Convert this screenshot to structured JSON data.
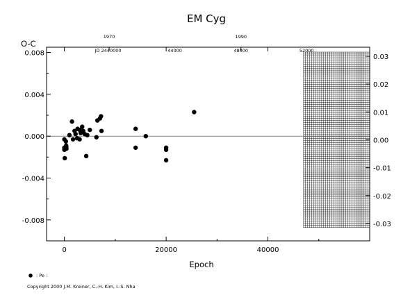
{
  "chart_data": {
    "type": "scatter",
    "title": "EM  Cyg",
    "xlabel": "Epoch",
    "ylabel": "O-C",
    "xlim": [
      -3500,
      60000
    ],
    "ylim": [
      -0.01,
      0.0085
    ],
    "xticks": [
      "0",
      "20000",
      "40000"
    ],
    "xtick_values": [
      0,
      20000,
      40000
    ],
    "yticks": [
      "0.008",
      "0.004",
      "0.000",
      "-0.004",
      "-0.008"
    ],
    "ytick_values": [
      0.008,
      0.004,
      0.0,
      -0.004,
      -0.008
    ],
    "ytick_display_first": "0.008",
    "right_ylim": [
      -0.0315,
      0.0315
    ],
    "right_yticks": [
      "0.03",
      "0.02",
      "0.01",
      "0.00",
      "-0.01",
      "-0.02",
      "-0.03"
    ],
    "right_ytick_values": [
      0.03,
      0.02,
      0.01,
      0.0,
      -0.01,
      -0.02,
      -0.03
    ],
    "top_year_ticks": [
      "1970",
      "1990"
    ],
    "top_year_epochs": [
      8800,
      34700
    ],
    "top_jd_ticks": [
      "JD 2440000",
      "44000",
      "48000",
      "52000"
    ],
    "top_jd_epochs": [
      8600,
      21700,
      34700,
      47600
    ],
    "grid_region_xlim": [
      47000,
      60000
    ],
    "legend": {
      "marker": "filled-circle",
      "label": ": Pe :"
    },
    "series": [
      {
        "marker": "filled-circle",
        "points": [
          [
            0,
            -0.0003
          ],
          [
            0,
            -0.0011
          ],
          [
            0,
            -0.0013
          ],
          [
            80,
            -0.0021
          ],
          [
            300,
            -0.0005
          ],
          [
            350,
            -0.0009
          ],
          [
            380,
            -0.001
          ],
          [
            400,
            -0.0012
          ],
          [
            1000,
            0.0001
          ],
          [
            1500,
            0.0014
          ],
          [
            1700,
            -0.0003
          ],
          [
            2000,
            0.0005
          ],
          [
            2200,
            0.0002
          ],
          [
            2500,
            -0.0002
          ],
          [
            2600,
            0.0007
          ],
          [
            3000,
            0.0006
          ],
          [
            3000,
            -0.0003
          ],
          [
            3200,
            0.0003
          ],
          [
            3500,
            0.0009
          ],
          [
            3700,
            0.0005
          ],
          [
            4000,
            0.0002
          ],
          [
            4300,
            -0.0019
          ],
          [
            4500,
            0.0001
          ],
          [
            5000,
            0.0006
          ],
          [
            6300,
            -0.0001
          ],
          [
            6500,
            0.0015
          ],
          [
            7000,
            0.0017
          ],
          [
            7200,
            0.0019
          ],
          [
            7300,
            0.0005
          ],
          [
            14000,
            0.0007
          ],
          [
            14000,
            -0.0011
          ],
          [
            16000,
            0.0
          ],
          [
            20000,
            -0.0011
          ],
          [
            20000,
            -0.0013
          ],
          [
            20000,
            -0.0023
          ],
          [
            25500,
            0.0023
          ]
        ]
      }
    ]
  },
  "footer": {
    "copyright": "Copyright 2000 J.M. Kreiner, C.-H. Kim, I.-S. Nha"
  }
}
